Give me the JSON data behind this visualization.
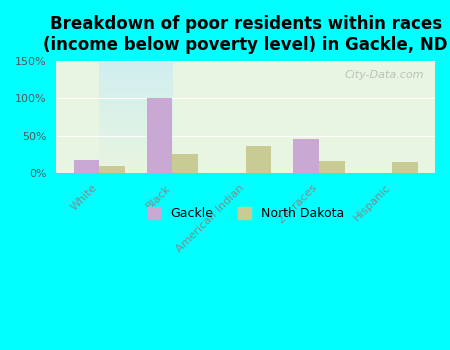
{
  "title": "Breakdown of poor residents within races\n(income below poverty level) in Gackle, ND",
  "categories": [
    "White",
    "Black",
    "American Indian",
    "2+ races",
    "Hispanic"
  ],
  "gackle_values": [
    17,
    100,
    0,
    46,
    0
  ],
  "nd_values": [
    10,
    25,
    36,
    16,
    15
  ],
  "gackle_color": "#c9a8d4",
  "nd_color": "#c8cc94",
  "bg_color": "#00ffff",
  "plot_bg_top": "#d0eef0",
  "plot_bg_bottom": "#e8f5e0",
  "ylim": [
    0,
    150
  ],
  "yticks": [
    0,
    50,
    100,
    150
  ],
  "ytick_labels": [
    "0%",
    "50%",
    "100%",
    "150%"
  ],
  "watermark": "City-Data.com",
  "legend_gackle": "Gackle",
  "legend_nd": "North Dakota",
  "bar_width": 0.35,
  "title_fontsize": 12,
  "tick_fontsize": 8,
  "legend_fontsize": 9
}
